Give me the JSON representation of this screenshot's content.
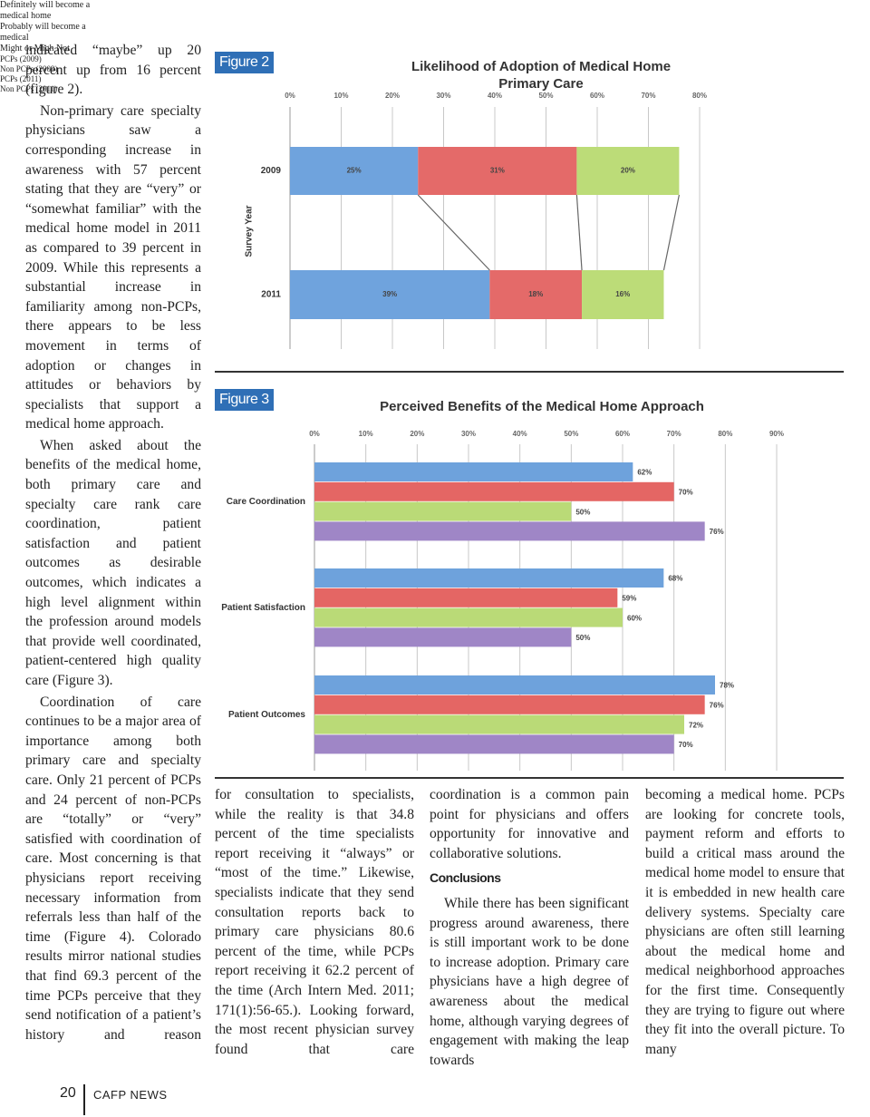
{
  "left_column": [
    "indicated “maybe” up 20 percent up from 16 percent (figure 2).",
    "Non-primary care specialty physicians saw a corresponding increase in awareness with 57 percent stating that they are “very” or “somewhat familiar” with the medical home model in 2011 as compared to 39 percent in 2009. While this represents a substantial increase in familiarity among non-PCPs, there appears to be less movement in terms of adoption or changes in attitudes or behaviors by specialists that support a medical home approach.",
    "When asked about the benefits of the medical home, both primary care and specialty care rank care coordination, patient satisfaction and patient outcomes as desirable outcomes, which indicates a high level alignment within the profession around models that provide well coordinated, patient-centered high quality care (Figure 3).",
    "Coordination of care continues to be a major area of importance among both primary care and specialty care. Only 21 percent of PCPs and 24 percent of non-PCPs are “totally” or “very” satisfied with coordination of care. Most concerning is that physicians report receiving necessary information from referrals less than half of the time (Figure 4). Colorado results mirror national studies that find 69.3 percent of the time PCPs perceive that they send notification of a patient’s history and reason"
  ],
  "figures": [
    "Figure 2",
    "Figure 3"
  ],
  "chart_data": [
    {
      "type": "bar",
      "orientation": "horizontal",
      "stacked": true,
      "connectors": true,
      "title": "Likelihood of Adoption of Medical Home",
      "subtitle": "Primary Care",
      "y_label": "Survey Year",
      "categories": [
        "2009",
        "2011"
      ],
      "series": [
        {
          "name": "Definitely will become a medical home",
          "color": "#6fa3dd",
          "values": [
            25,
            39
          ],
          "value_labels": [
            "25%",
            "39%"
          ]
        },
        {
          "name": "Probably will become a medical",
          "color": "#e46a69",
          "values": [
            31,
            18
          ],
          "value_labels": [
            "31%",
            "18%"
          ]
        },
        {
          "name": "Might or Migh Not",
          "color": "#bcdc78",
          "values": [
            20,
            16
          ],
          "value_labels": [
            "20%",
            "16%"
          ]
        }
      ],
      "xlim": [
        0,
        80
      ],
      "xticks": [
        {
          "value": 0,
          "label": "0%"
        },
        {
          "value": 10,
          "label": "10%"
        },
        {
          "value": 20,
          "label": "20%"
        },
        {
          "value": 30,
          "label": "30%"
        },
        {
          "value": 40,
          "label": "40%"
        },
        {
          "value": 50,
          "label": "50%"
        },
        {
          "value": 60,
          "label": "60%"
        },
        {
          "value": 70,
          "label": "70%"
        },
        {
          "value": 80,
          "label": "80%"
        }
      ],
      "grid": true,
      "legend": "right"
    },
    {
      "type": "bar",
      "orientation": "horizontal",
      "stacked": false,
      "title": "Perceived Benefits of the Medical Home Approach",
      "categories": [
        "Care Coordination",
        "Patient Satisfaction",
        "Patient Outcomes"
      ],
      "series": [
        {
          "name": "PCPs (2009)",
          "color": "#6ea2dc",
          "values": [
            62,
            68,
            78
          ],
          "value_labels": [
            "62%",
            "68%",
            "78%"
          ]
        },
        {
          "name": "Non PCPs (2009)",
          "color": "#e46664",
          "values": [
            70,
            59,
            76
          ],
          "value_labels": [
            "70%",
            "59%",
            "76%"
          ]
        },
        {
          "name": "PCPs (2011)",
          "color": "#bada77",
          "values": [
            50,
            60,
            72
          ],
          "value_labels": [
            "50%",
            "60%",
            "72%"
          ]
        },
        {
          "name": "Non PCPs (2011)",
          "color": "#9f86c6",
          "values": [
            76,
            50,
            70
          ],
          "value_labels": [
            "76%",
            "50%",
            "70%"
          ]
        }
      ],
      "xlim": [
        0,
        90
      ],
      "xticks": [
        {
          "value": 0,
          "label": "0%"
        },
        {
          "value": 10,
          "label": "10%"
        },
        {
          "value": 20,
          "label": "20%"
        },
        {
          "value": 30,
          "label": "30%"
        },
        {
          "value": 40,
          "label": "40%"
        },
        {
          "value": 50,
          "label": "50%"
        },
        {
          "value": 60,
          "label": "60%"
        },
        {
          "value": 70,
          "label": "70%"
        },
        {
          "value": 80,
          "label": "80%"
        },
        {
          "value": 90,
          "label": "90%"
        }
      ],
      "grid": true,
      "legend": "right"
    }
  ],
  "bottom_columns": [
    [
      "for consultation to specialists, while the reality is that 34.8 percent of the time specialists report receiving it “always” or “most of the time.” Likewise, specialists indicate that they send consultation reports back to primary care physicians 80.6 percent of the time, while PCPs report receiving it 62.2 percent of the time (Arch Intern Med. 2011; 171(1):56-65.). Looking forward, the most recent physician survey found that care"
    ],
    [
      "coordination is a common pain point for physicians and offers opportunity for innovative and collaborative solutions.",
      "While there has been significant progress around awareness, there is still important work to be done to increase adoption. Primary care physicians have a high degree of awareness about the medical home, although varying degrees of engagement with making the leap towards"
    ],
    [
      "becoming a medical home. PCPs are looking for concrete tools, payment reform and efforts to build a critical mass around the medical home model to ensure that it is embedded in new health care delivery systems. Specialty care physicians are often still learning about the medical home and medical neighborhood approaches for the first time. Consequently they are trying to figure out where they fit into the overall picture. To many"
    ]
  ],
  "conclusions_heading": "Conclusions",
  "footer": {
    "page_number": "20",
    "publication": "CAFP NEWS"
  }
}
